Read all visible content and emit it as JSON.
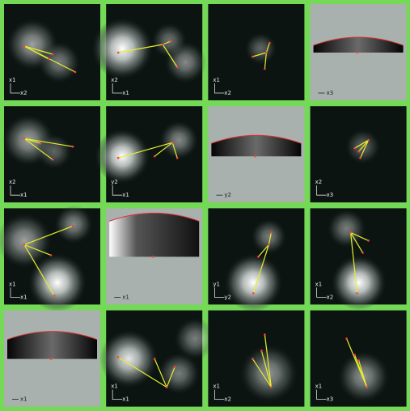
{
  "panels": [
    {
      "kind": "density",
      "v_label": "x1",
      "h_label": "x2"
    },
    {
      "kind": "density",
      "v_label": "x2",
      "h_label": "x1"
    },
    {
      "kind": "density",
      "v_label": "x1",
      "h_label": "x2"
    },
    {
      "kind": "profile",
      "h_label": "x3"
    },
    {
      "kind": "density",
      "v_label": "x2",
      "h_label": "x1"
    },
    {
      "kind": "density",
      "v_label": "y2",
      "h_label": "x1"
    },
    {
      "kind": "profile",
      "h_label": "y2"
    },
    {
      "kind": "density",
      "v_label": "x2",
      "h_label": "x3"
    },
    {
      "kind": "density",
      "v_label": "x1",
      "h_label": "x1"
    },
    {
      "kind": "profile",
      "h_label": "x1"
    },
    {
      "kind": "density",
      "v_label": "y1",
      "h_label": "y2"
    },
    {
      "kind": "density",
      "v_label": "x1",
      "h_label": "x2"
    },
    {
      "kind": "profile",
      "h_label": "x1"
    },
    {
      "kind": "density",
      "v_label": "x1",
      "h_label": "x1"
    },
    {
      "kind": "density",
      "v_label": "x1",
      "h_label": "x2"
    },
    {
      "kind": "density",
      "v_label": "x1",
      "h_label": "x3"
    }
  ]
}
